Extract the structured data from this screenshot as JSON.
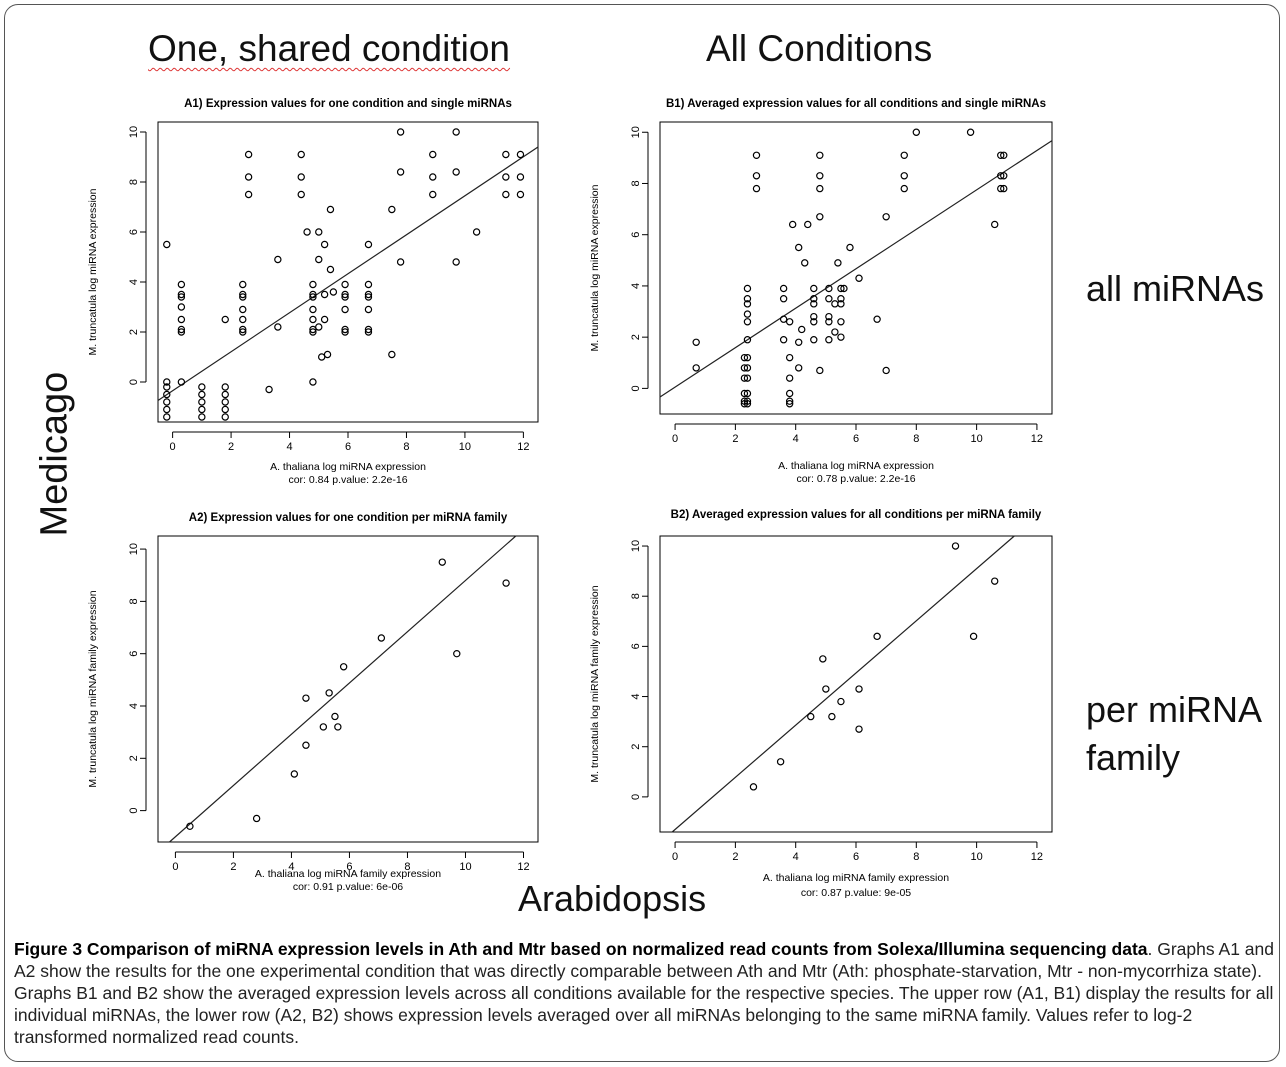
{
  "header": {
    "left": "One, shared condition",
    "right": "All Conditions"
  },
  "row_labels": {
    "top": "all miRNAs",
    "bottom_line1": "per miRNA",
    "bottom_line2": "family"
  },
  "axis_labels": {
    "species_y": "Medicago",
    "species_x": "Arabidopsis"
  },
  "caption": {
    "title": "Figure 3 Comparison of miRNA expression levels in Ath and Mtr based on normalized read counts from Solexa/Illumina sequencing data",
    "body": ". Graphs A1 and A2 show the results for the one experimental condition that was directly comparable between Ath and Mtr (Ath: phosphate-starvation, Mtr - non-mycorrhiza state). Graphs B1 and B2 show the averaged expression levels across all conditions available for the respective species. The upper row (A1, B1) display the results for all individual miRNAs, the lower row (A2, B2) shows expression levels averaged over all miRNAs belonging to the same miRNA family. Values refer to log-2 transformed normalized read counts."
  },
  "chart_data": [
    {
      "id": "A1",
      "type": "scatter",
      "title": "A1) Expression values for one condition and single miRNAs",
      "xlabel": "A. thaliana log miRNA expression",
      "ylabel": "M. truncatula log miRNA expression",
      "stats": "cor: 0.84  p.value: 2.2e-16",
      "xlim": [
        -0.5,
        12.5
      ],
      "ylim": [
        -1.6,
        10.4
      ],
      "xticks": [
        0,
        2,
        4,
        6,
        8,
        10,
        12
      ],
      "yticks": [
        0,
        2,
        4,
        6,
        8,
        10
      ],
      "fit": {
        "slope": 0.78,
        "intercept": -0.35
      },
      "points": [
        [
          -0.2,
          5.5
        ],
        [
          -0.2,
          0
        ],
        [
          -0.2,
          -0.2
        ],
        [
          -0.2,
          -0.5
        ],
        [
          -0.2,
          -0.8
        ],
        [
          -0.2,
          -1.1
        ],
        [
          -0.2,
          -1.4
        ],
        [
          0.3,
          0
        ],
        [
          0.3,
          2
        ],
        [
          0.3,
          2.1
        ],
        [
          0.3,
          2.5
        ],
        [
          0.3,
          3
        ],
        [
          0.3,
          3.4
        ],
        [
          0.3,
          3.5
        ],
        [
          0.3,
          3.9
        ],
        [
          1,
          -0.2
        ],
        [
          1,
          -0.5
        ],
        [
          1,
          -0.8
        ],
        [
          1,
          -1.1
        ],
        [
          1,
          -1.4
        ],
        [
          1.8,
          -0.2
        ],
        [
          1.8,
          -0.5
        ],
        [
          1.8,
          -0.8
        ],
        [
          1.8,
          -1.1
        ],
        [
          1.8,
          -1.4
        ],
        [
          1.8,
          2.5
        ],
        [
          2.4,
          2
        ],
        [
          2.4,
          2.1
        ],
        [
          2.4,
          2.5
        ],
        [
          2.4,
          2.9
        ],
        [
          2.4,
          3.4
        ],
        [
          2.4,
          3.5
        ],
        [
          2.4,
          3.9
        ],
        [
          2.6,
          7.5
        ],
        [
          2.6,
          8.2
        ],
        [
          2.6,
          9.1
        ],
        [
          3.3,
          -0.3
        ],
        [
          3.6,
          2.2
        ],
        [
          3.6,
          4.9
        ],
        [
          4.4,
          7.5
        ],
        [
          4.4,
          8.2
        ],
        [
          4.4,
          9.1
        ],
        [
          4.6,
          6
        ],
        [
          4.8,
          0
        ],
        [
          4.8,
          2
        ],
        [
          4.8,
          2.1
        ],
        [
          4.8,
          2.5
        ],
        [
          4.8,
          2.9
        ],
        [
          4.8,
          3.4
        ],
        [
          4.8,
          3.5
        ],
        [
          4.8,
          3.9
        ],
        [
          5,
          6
        ],
        [
          5,
          4.9
        ],
        [
          5,
          2.2
        ],
        [
          5.1,
          1
        ],
        [
          5.2,
          2.5
        ],
        [
          5.2,
          3.5
        ],
        [
          5.2,
          5.5
        ],
        [
          5.3,
          1.1
        ],
        [
          5.4,
          4.5
        ],
        [
          5.4,
          6.9
        ],
        [
          5.5,
          3.6
        ],
        [
          5.9,
          2
        ],
        [
          5.9,
          2.1
        ],
        [
          5.9,
          2.9
        ],
        [
          5.9,
          3.4
        ],
        [
          5.9,
          3.5
        ],
        [
          5.9,
          3.9
        ],
        [
          6.7,
          2
        ],
        [
          6.7,
          2.1
        ],
        [
          6.7,
          2.9
        ],
        [
          6.7,
          3.4
        ],
        [
          6.7,
          3.5
        ],
        [
          6.7,
          3.9
        ],
        [
          6.7,
          5.5
        ],
        [
          7.5,
          1.1
        ],
        [
          7.5,
          6.9
        ],
        [
          7.8,
          4.8
        ],
        [
          7.8,
          8.4
        ],
        [
          7.8,
          10
        ],
        [
          8.9,
          7.5
        ],
        [
          8.9,
          8.2
        ],
        [
          8.9,
          9.1
        ],
        [
          9.7,
          4.8
        ],
        [
          9.7,
          8.4
        ],
        [
          9.7,
          10
        ],
        [
          10.4,
          6
        ],
        [
          11.4,
          7.5
        ],
        [
          11.4,
          8.2
        ],
        [
          11.4,
          9.1
        ],
        [
          11.9,
          7.5
        ],
        [
          11.9,
          8.2
        ],
        [
          11.9,
          9.1
        ]
      ]
    },
    {
      "id": "B1",
      "type": "scatter",
      "title": "B1) Averaged expression values for all conditions and single miRNAs",
      "xlabel": "A. thaliana log miRNA expression",
      "ylabel": "M. truncatula log miRNA expression",
      "stats": "cor: 0.78  p.value: 2.2e-16",
      "xlim": [
        -0.5,
        12.5
      ],
      "ylim": [
        -1.0,
        10.4
      ],
      "xticks": [
        0,
        2,
        4,
        6,
        8,
        10,
        12
      ],
      "yticks": [
        0,
        2,
        4,
        6,
        8,
        10
      ],
      "fit": {
        "slope": 0.77,
        "intercept": 0.05
      },
      "points": [
        [
          0.7,
          0.8
        ],
        [
          0.7,
          1.8
        ],
        [
          2.3,
          -0.6
        ],
        [
          2.3,
          -0.5
        ],
        [
          2.3,
          -0.2
        ],
        [
          2.3,
          0.4
        ],
        [
          2.3,
          0.8
        ],
        [
          2.3,
          1.2
        ],
        [
          2.4,
          -0.6
        ],
        [
          2.4,
          -0.5
        ],
        [
          2.4,
          -0.2
        ],
        [
          2.4,
          0.4
        ],
        [
          2.4,
          0.8
        ],
        [
          2.4,
          1.2
        ],
        [
          2.4,
          1.9
        ],
        [
          2.4,
          2.6
        ],
        [
          2.4,
          2.9
        ],
        [
          2.4,
          3.3
        ],
        [
          2.4,
          3.5
        ],
        [
          2.4,
          3.9
        ],
        [
          2.7,
          7.8
        ],
        [
          2.7,
          8.3
        ],
        [
          2.7,
          9.1
        ],
        [
          3.6,
          1.9
        ],
        [
          3.6,
          2.7
        ],
        [
          3.6,
          3.5
        ],
        [
          3.6,
          3.9
        ],
        [
          3.8,
          -0.6
        ],
        [
          3.8,
          -0.5
        ],
        [
          3.8,
          -0.2
        ],
        [
          3.8,
          0.4
        ],
        [
          3.8,
          1.2
        ],
        [
          3.8,
          2.6
        ],
        [
          3.9,
          6.4
        ],
        [
          4.1,
          0.8
        ],
        [
          4.1,
          1.8
        ],
        [
          4.1,
          5.5
        ],
        [
          4.2,
          2.3
        ],
        [
          4.3,
          4.9
        ],
        [
          4.4,
          6.4
        ],
        [
          4.6,
          1.9
        ],
        [
          4.6,
          2.6
        ],
        [
          4.6,
          2.8
        ],
        [
          4.6,
          3.3
        ],
        [
          4.6,
          3.5
        ],
        [
          4.6,
          3.9
        ],
        [
          4.8,
          7.8
        ],
        [
          4.8,
          8.3
        ],
        [
          4.8,
          9.1
        ],
        [
          4.8,
          6.7
        ],
        [
          4.8,
          0.7
        ],
        [
          5.1,
          1.9
        ],
        [
          5.1,
          2.6
        ],
        [
          5.1,
          2.8
        ],
        [
          5.1,
          3.5
        ],
        [
          5.1,
          3.9
        ],
        [
          5.3,
          2.2
        ],
        [
          5.3,
          3.3
        ],
        [
          5.4,
          4.9
        ],
        [
          5.5,
          2.0
        ],
        [
          5.5,
          2.6
        ],
        [
          5.5,
          3.3
        ],
        [
          5.5,
          3.5
        ],
        [
          5.5,
          3.9
        ],
        [
          5.6,
          3.9
        ],
        [
          5.8,
          5.5
        ],
        [
          6.1,
          4.3
        ],
        [
          6.7,
          2.7
        ],
        [
          7,
          0.7
        ],
        [
          7,
          6.7
        ],
        [
          7.6,
          7.8
        ],
        [
          7.6,
          8.3
        ],
        [
          7.6,
          9.1
        ],
        [
          8,
          10
        ],
        [
          9.8,
          10
        ],
        [
          10.6,
          6.4
        ],
        [
          10.8,
          7.8
        ],
        [
          10.8,
          8.3
        ],
        [
          10.8,
          9.1
        ],
        [
          10.9,
          7.8
        ],
        [
          10.9,
          8.3
        ],
        [
          10.9,
          9.1
        ]
      ]
    },
    {
      "id": "A2",
      "type": "scatter",
      "title": "A2) Expression values for one condition per miRNA family",
      "xlabel": "A. thaliana log miRNA family expression",
      "ylabel": "M. truncatula log miRNA family expression",
      "stats": "cor: 0.91  p.value: 6e-06",
      "xlim": [
        -0.6,
        12.5
      ],
      "ylim": [
        -1.2,
        10.5
      ],
      "xticks": [
        0,
        2,
        4,
        6,
        8,
        10,
        12
      ],
      "yticks": [
        0,
        2,
        4,
        6,
        8,
        10
      ],
      "fit": {
        "slope": 0.98,
        "intercept": -1.0
      },
      "points": [
        [
          0.5,
          -0.6
        ],
        [
          2.8,
          -0.3
        ],
        [
          4.1,
          1.4
        ],
        [
          4.5,
          2.5
        ],
        [
          4.5,
          4.3
        ],
        [
          5.1,
          3.2
        ],
        [
          5.3,
          4.5
        ],
        [
          5.5,
          3.6
        ],
        [
          5.6,
          3.2
        ],
        [
          5.8,
          5.5
        ],
        [
          7.1,
          6.6
        ],
        [
          9.2,
          9.5
        ],
        [
          9.7,
          6
        ],
        [
          11.4,
          8.7
        ]
      ]
    },
    {
      "id": "B2",
      "type": "scatter",
      "title": "B2) Averaged expression values for all conditions per miRNA family",
      "xlabel": "A. thaliana log miRNA family expression",
      "ylabel": "M. truncatula log miRNA family expression",
      "stats": "cor: 0.87  p.value: 9e-05",
      "xlim": [
        -0.5,
        12.5
      ],
      "ylim": [
        -1.4,
        10.4
      ],
      "xticks": [
        0,
        2,
        4,
        6,
        8,
        10,
        12
      ],
      "yticks": [
        0,
        2,
        4,
        6,
        8,
        10
      ],
      "fit": {
        "slope": 1.04,
        "intercept": -1.3
      },
      "points": [
        [
          2.6,
          0.4
        ],
        [
          3.5,
          1.4
        ],
        [
          4.5,
          3.2
        ],
        [
          4.9,
          5.5
        ],
        [
          5.0,
          4.3
        ],
        [
          5.2,
          3.2
        ],
        [
          5.5,
          3.8
        ],
        [
          6.1,
          4.3
        ],
        [
          6.1,
          2.7
        ],
        [
          6.7,
          6.4
        ],
        [
          9.3,
          10
        ],
        [
          9.9,
          6.4
        ],
        [
          10.6,
          8.6
        ]
      ]
    }
  ]
}
